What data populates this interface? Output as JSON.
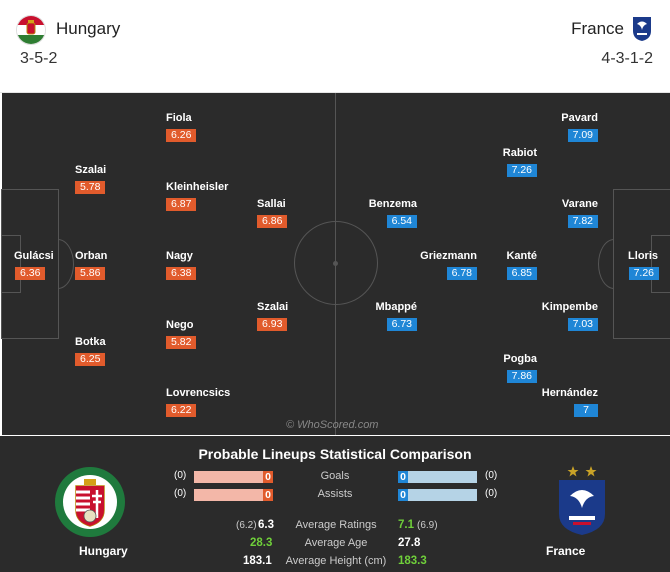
{
  "home": {
    "name": "Hungary",
    "formation": "3-5-2"
  },
  "away": {
    "name": "France",
    "formation": "4-3-1-2"
  },
  "home_players": [
    {
      "name": "Gulácsi",
      "rating": "6.36"
    },
    {
      "name": "Szalai",
      "rating": "5.78"
    },
    {
      "name": "Orban",
      "rating": "5.86"
    },
    {
      "name": "Botka",
      "rating": "6.25"
    },
    {
      "name": "Fiola",
      "rating": "6.26"
    },
    {
      "name": "Kleinheisler",
      "rating": "6.87"
    },
    {
      "name": "Nagy",
      "rating": "6.38"
    },
    {
      "name": "Nego",
      "rating": "5.82"
    },
    {
      "name": "Lovrencsics",
      "rating": "6.22"
    },
    {
      "name": "Sallai",
      "rating": "6.86"
    },
    {
      "name": "Szalai",
      "rating": "6.93"
    }
  ],
  "away_players": [
    {
      "name": "Lloris",
      "rating": "7.26"
    },
    {
      "name": "Pavard",
      "rating": "7.09"
    },
    {
      "name": "Varane",
      "rating": "7.82"
    },
    {
      "name": "Kimpembe",
      "rating": "7.03"
    },
    {
      "name": "Hernández",
      "rating": "7"
    },
    {
      "name": "Rabiot",
      "rating": "7.26"
    },
    {
      "name": "Kanté",
      "rating": "6.85"
    },
    {
      "name": "Pogba",
      "rating": "7.86"
    },
    {
      "name": "Griezmann",
      "rating": "6.78"
    },
    {
      "name": "Benzema",
      "rating": "6.54"
    },
    {
      "name": "Mbappé",
      "rating": "6.73"
    }
  ],
  "watermark": "© WhoScored.com",
  "comparison": {
    "title": "Probable Lineups Statistical Comparison",
    "goals": {
      "label": "Goals",
      "home": "0",
      "away": "0",
      "home_paren": "(0)",
      "away_paren": "(0)"
    },
    "assists": {
      "label": "Assists",
      "home": "0",
      "away": "0",
      "home_paren": "(0)",
      "away_paren": "(0)"
    },
    "ratings": {
      "label": "Average Ratings",
      "home_prev": "(6.2)",
      "home": "6.3",
      "away": "7.1",
      "away_prev": "(6.9)"
    },
    "age": {
      "label": "Average Age",
      "home": "28.3",
      "away": "27.8"
    },
    "height": {
      "label": "Average Height (cm)",
      "home": "183.1",
      "away": "183.3"
    },
    "home_team": "Hungary",
    "away_team": "France"
  },
  "colors": {
    "home": "#e15b2c",
    "away": "#1f86d6",
    "better": "#6fcf3a"
  },
  "icons": [
    "hungary-flag-icon",
    "france-federation-icon",
    "hungary-crest-icon",
    "france-crest-icon"
  ]
}
